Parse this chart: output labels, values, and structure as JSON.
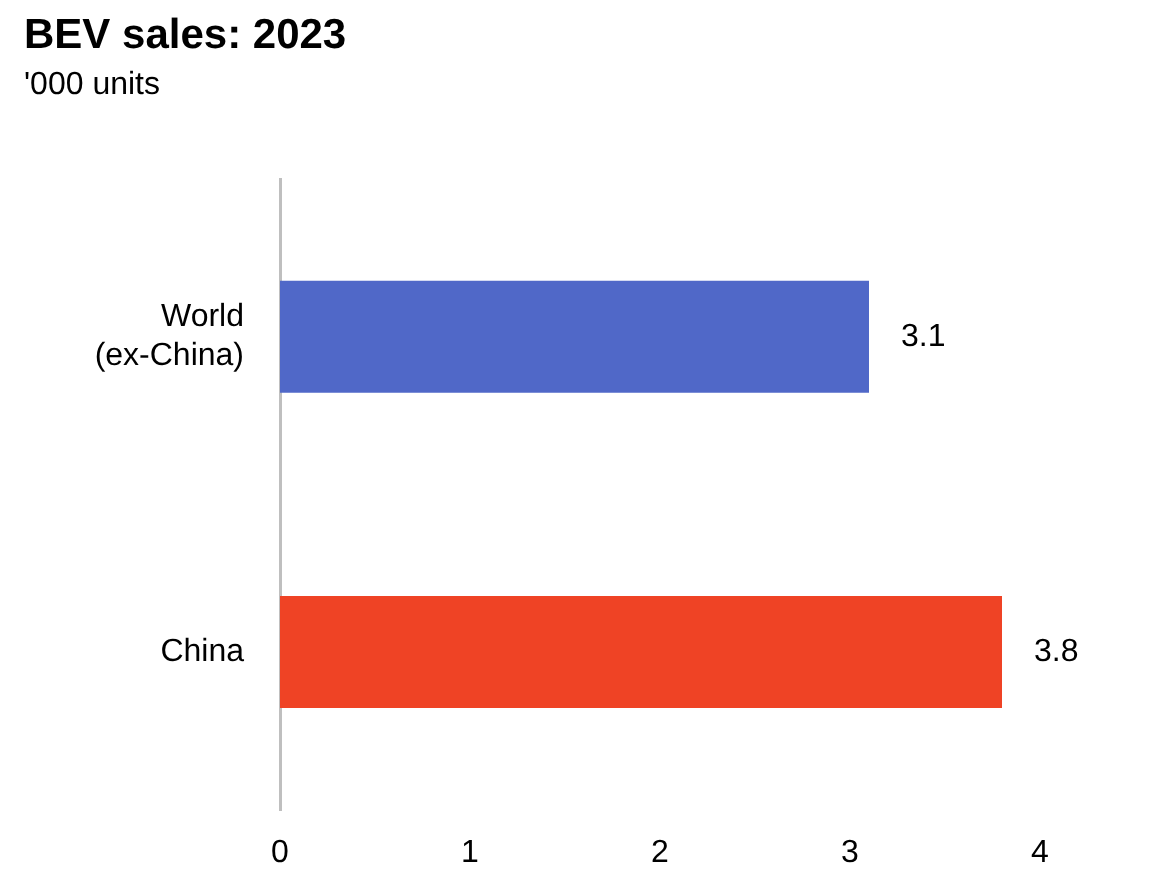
{
  "chart_data": {
    "type": "bar",
    "orientation": "horizontal",
    "title": "BEV sales: 2023",
    "subtitle": "'000 units",
    "categories": [
      "World (ex-China)",
      "China"
    ],
    "values": [
      3.1,
      3.8
    ],
    "colors": [
      "#5068c8",
      "#ef4325"
    ],
    "xlim": [
      0,
      4
    ],
    "xticks": [
      0,
      1,
      2,
      3,
      4
    ],
    "grid": false,
    "legend": false,
    "data_labels": true
  }
}
